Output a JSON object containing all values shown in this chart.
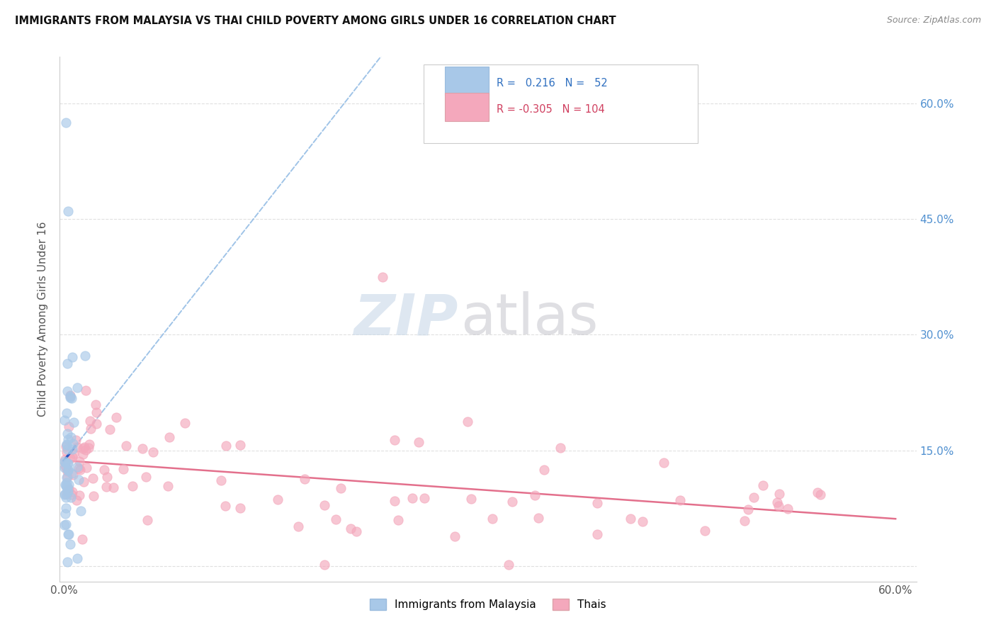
{
  "title": "IMMIGRANTS FROM MALAYSIA VS THAI CHILD POVERTY AMONG GIRLS UNDER 16 CORRELATION CHART",
  "source": "Source: ZipAtlas.com",
  "ylabel": "Child Poverty Among Girls Under 16",
  "color_malaysia": "#a8c8e8",
  "color_thai": "#f4a8bc",
  "color_line_malaysia_dash": "#80b0e0",
  "color_line_malaysia_solid": "#1a50c0",
  "color_line_thai": "#e06080",
  "watermark_zip_color": "#c8d8e8",
  "watermark_atlas_color": "#c0c0c8",
  "background": "#ffffff",
  "grid_color": "#e0e0e0",
  "right_axis_color": "#5090d0",
  "xlim": [
    -0.003,
    0.615
  ],
  "ylim": [
    -0.02,
    0.66
  ],
  "x_ticks": [
    0.0,
    0.1,
    0.2,
    0.3,
    0.4,
    0.5,
    0.6
  ],
  "y_ticks": [
    0.0,
    0.15,
    0.3,
    0.45,
    0.6
  ],
  "y_tick_labels_right": [
    "",
    "15.0%",
    "30.0%",
    "45.0%",
    "60.0%"
  ]
}
